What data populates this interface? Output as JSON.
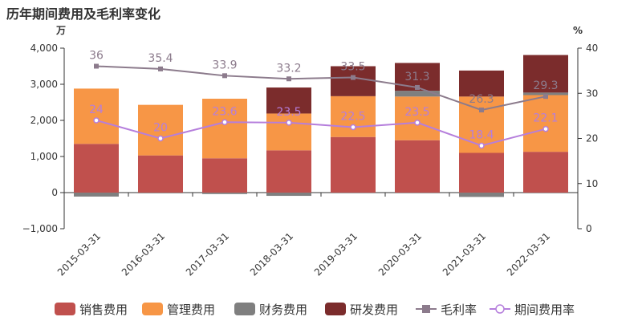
{
  "chart_data": {
    "type": "bar",
    "title": "历年期间费用及毛利率变化",
    "left_unit": "万",
    "right_unit": "%",
    "categories": [
      "2015-03-31",
      "2016-03-31",
      "2017-03-31",
      "2018-03-31",
      "2019-03-31",
      "2020-03-31",
      "2021-03-31",
      "2022-03-31"
    ],
    "left_axis": {
      "min": -1000,
      "max": 4000,
      "ticks": [
        -1000,
        0,
        1000,
        2000,
        3000,
        4000
      ],
      "tick_labels": [
        "−1,000",
        "0",
        "1,000",
        "2,000",
        "3,000",
        "4,000"
      ]
    },
    "right_axis": {
      "min": 0,
      "max": 40,
      "ticks": [
        0,
        10,
        20,
        30,
        40
      ],
      "tick_labels": [
        "0",
        "10",
        "20",
        "30",
        "40"
      ]
    },
    "stacked": true,
    "series": [
      {
        "name": "销售费用",
        "kind": "bar",
        "color": "#c0504d",
        "values": [
          1350,
          1030,
          950,
          1170,
          1540,
          1450,
          1100,
          1130
        ]
      },
      {
        "name": "管理费用",
        "kind": "bar",
        "color": "#f79646",
        "values": [
          1530,
          1400,
          1650,
          1020,
          1130,
          1210,
          1560,
          1570
        ]
      },
      {
        "name": "财务费用",
        "kind": "bar",
        "color": "#7f7f7f",
        "values": [
          -110,
          -20,
          -40,
          -90,
          0,
          160,
          -120,
          70
        ]
      },
      {
        "name": "研发费用",
        "kind": "bar",
        "color": "#7b2c2c",
        "values": [
          0,
          0,
          0,
          720,
          830,
          770,
          720,
          1040
        ]
      },
      {
        "name": "毛利率",
        "kind": "line",
        "axis": "right",
        "color": "#8c7b8c",
        "marker": "square",
        "values": [
          36,
          35.4,
          33.9,
          33.2,
          33.5,
          31.3,
          26.3,
          29.3
        ],
        "labels": [
          "36",
          "35.4",
          "33.9",
          "33.2",
          "33.5",
          "31.3",
          "26.3",
          "29.3"
        ]
      },
      {
        "name": "期间费用率",
        "kind": "line",
        "axis": "right",
        "color": "#b57edc",
        "marker": "circle",
        "values": [
          24,
          20,
          23.6,
          23.5,
          22.5,
          23.5,
          18.4,
          22.1
        ],
        "labels": [
          "24",
          "20",
          "23.6",
          "23.5",
          "22.5",
          "23.5",
          "18.4",
          "22.1"
        ]
      }
    ],
    "legend_position": "bottom"
  }
}
